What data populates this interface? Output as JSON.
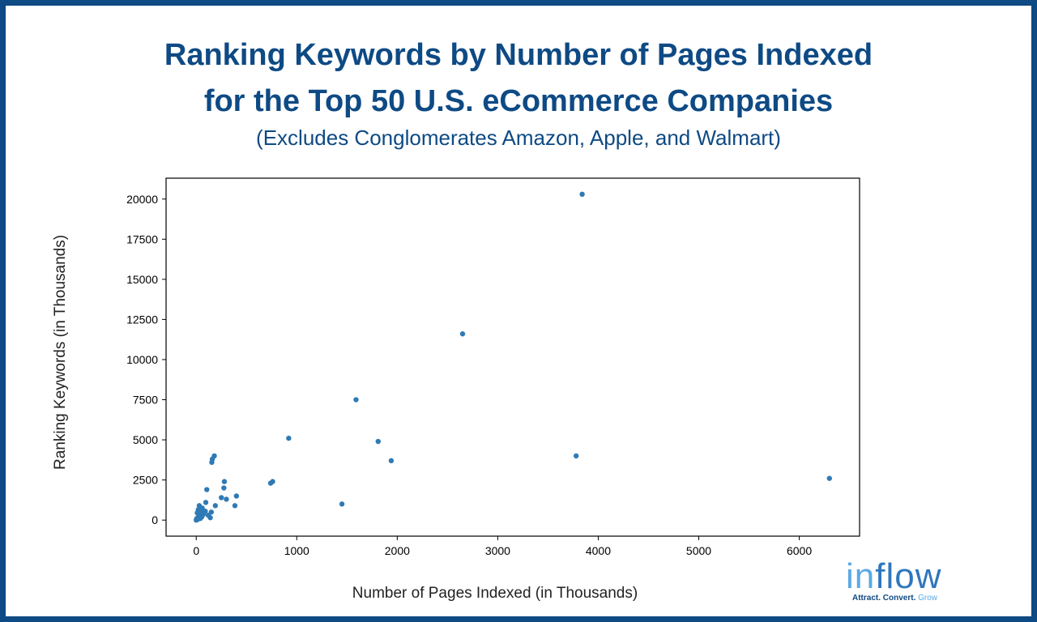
{
  "chart_data": {
    "type": "scatter",
    "title_line1": "Ranking Keywords by Number of Pages Indexed",
    "title_line2": "for the Top 50 U.S. eCommerce Companies",
    "subtitle": "(Excludes Conglomerates Amazon, Apple, and Walmart)",
    "xlabel": "Number of Pages Indexed (in Thousands)",
    "ylabel": "Ranking Keywords (in Thousands)",
    "xlim": [
      -300,
      6600
    ],
    "ylim": [
      -1000,
      21300
    ],
    "xticks": [
      0,
      1000,
      2000,
      3000,
      4000,
      5000,
      6000
    ],
    "yticks": [
      0,
      2500,
      5000,
      7500,
      10000,
      12500,
      15000,
      17500,
      20000
    ],
    "grid": false,
    "point_color": "#2f7ab5",
    "points": [
      {
        "x": 3840,
        "y": 20300
      },
      {
        "x": 2650,
        "y": 11600
      },
      {
        "x": 1590,
        "y": 7500
      },
      {
        "x": 920,
        "y": 5100
      },
      {
        "x": 1810,
        "y": 4900
      },
      {
        "x": 3780,
        "y": 4000
      },
      {
        "x": 1940,
        "y": 3700
      },
      {
        "x": 6300,
        "y": 2600
      },
      {
        "x": 1450,
        "y": 1000
      },
      {
        "x": 760,
        "y": 2400
      },
      {
        "x": 740,
        "y": 2300
      },
      {
        "x": 180,
        "y": 4000
      },
      {
        "x": 160,
        "y": 3800
      },
      {
        "x": 155,
        "y": 3600
      },
      {
        "x": 280,
        "y": 2400
      },
      {
        "x": 275,
        "y": 2000
      },
      {
        "x": 105,
        "y": 1900
      },
      {
        "x": 400,
        "y": 1500
      },
      {
        "x": 250,
        "y": 1400
      },
      {
        "x": 300,
        "y": 1300
      },
      {
        "x": 95,
        "y": 1100
      },
      {
        "x": 190,
        "y": 900
      },
      {
        "x": 385,
        "y": 900
      },
      {
        "x": 30,
        "y": 900
      },
      {
        "x": 60,
        "y": 750
      },
      {
        "x": 20,
        "y": 650
      },
      {
        "x": 45,
        "y": 600
      },
      {
        "x": 90,
        "y": 550
      },
      {
        "x": 150,
        "y": 500
      },
      {
        "x": 10,
        "y": 450
      },
      {
        "x": 35,
        "y": 400
      },
      {
        "x": 70,
        "y": 350
      },
      {
        "x": 120,
        "y": 300
      },
      {
        "x": 25,
        "y": 250
      },
      {
        "x": 55,
        "y": 200
      },
      {
        "x": 140,
        "y": 150
      },
      {
        "x": 5,
        "y": 100
      },
      {
        "x": 40,
        "y": 100
      },
      {
        "x": 15,
        "y": 50
      },
      {
        "x": 0,
        "y": 0
      }
    ]
  },
  "logo": {
    "word_in": "in",
    "word_flow": "flow",
    "tagline": "Attract. Convert.",
    "tagline_end": "Grow"
  }
}
